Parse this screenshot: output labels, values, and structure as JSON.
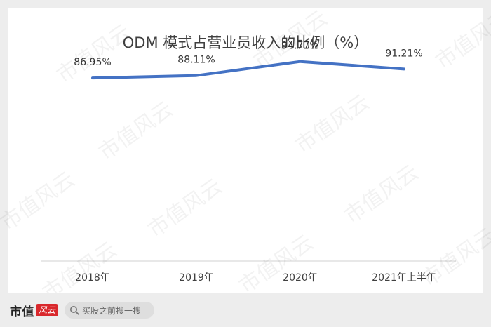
{
  "chart_data": {
    "type": "line",
    "title": "ODM 模式占营业员收入的比例（%）",
    "categories": [
      "2018年",
      "2019年",
      "2020年",
      "2021年上半年"
    ],
    "series": [
      {
        "values": [
          86.95,
          88.11,
          94.77,
          91.21
        ],
        "labels": [
          "86.95%",
          "88.11%",
          "94.77%",
          "91.21%"
        ],
        "color": "#4472c4"
      }
    ],
    "ylim": [
      0,
      100
    ],
    "grid": false,
    "legend": "none"
  },
  "watermark": "市值风云",
  "footer": {
    "brand": "市值",
    "brand_mark": "风云",
    "search_placeholder": "买股之前搜一搜"
  },
  "colors": {
    "background": "#ededed",
    "card": "#ffffff",
    "axis": "#d0d0d0",
    "text": "#404040",
    "brand_red": "#d9282c"
  }
}
